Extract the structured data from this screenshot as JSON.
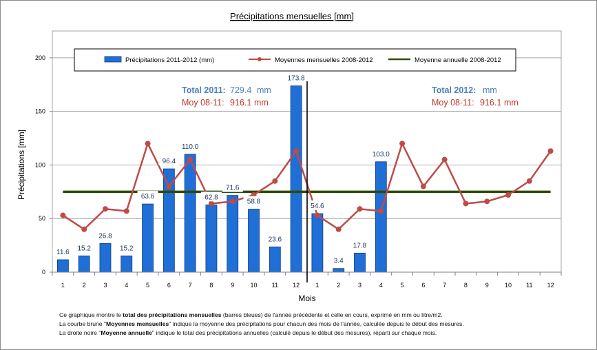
{
  "chart_data": {
    "type": "bar",
    "title": "Précipitations mensuelles [mm]",
    "xlabel": "Mois",
    "ylabel": "Précipitations [mm]",
    "ylim": [
      0,
      225
    ],
    "yticks": [
      0,
      50,
      100,
      150,
      200
    ],
    "grid": true,
    "legend_position": "top",
    "categories": [
      "1",
      "2",
      "3",
      "4",
      "5",
      "6",
      "7",
      "8",
      "9",
      "10",
      "11",
      "12",
      "1",
      "2",
      "3",
      "4",
      "5",
      "6",
      "7",
      "8",
      "9",
      "10",
      "11",
      "12"
    ],
    "series": [
      {
        "name": "Précipitations 2011-2012 (mm)",
        "type": "bar",
        "color": "#1f6fd6",
        "values": [
          11.6,
          15.2,
          26.8,
          15.2,
          63.6,
          96.4,
          110.0,
          62.8,
          71.6,
          58.8,
          23.6,
          173.8,
          54.6,
          3.4,
          17.8,
          103.0,
          null,
          null,
          null,
          null,
          null,
          null,
          null,
          null
        ],
        "labels": [
          "11.6",
          "15.2",
          "26.8",
          "15.2",
          "63.6",
          "96.4",
          "110.0",
          "62.8",
          "71.6",
          "58.8",
          "23.6",
          "173.8",
          "54.6",
          "3.4",
          "17.8",
          "103.0",
          "",
          "",
          "",
          "",
          "",
          "",
          "",
          ""
        ]
      },
      {
        "name": "Moyennes mensuelles 2008-2012",
        "type": "line",
        "color": "#be4b48",
        "values": [
          53,
          40,
          59,
          57,
          120,
          80,
          105,
          64,
          66,
          72,
          85,
          113,
          53,
          40,
          59,
          57,
          120,
          80,
          105,
          64,
          66,
          72,
          85,
          113
        ]
      },
      {
        "name": "Moyenne annuelle 2008-2012",
        "type": "line",
        "color": "#2d4a05",
        "values": [
          75,
          75,
          75,
          75,
          75,
          75,
          75,
          75,
          75,
          75,
          75,
          75,
          75,
          75,
          75,
          75,
          75,
          75,
          75,
          75,
          75,
          75,
          75,
          75
        ]
      }
    ],
    "year_separator_after_index": 11,
    "annotations": {
      "total_2011_label": "Total 2011:",
      "total_2011_value": "729.4",
      "total_2011_unit": "mm",
      "moy_2011_label": "Moy 08-11:",
      "moy_2011_value": "916.1",
      "moy_2011_unit": "mm",
      "total_2012_label": "Total 2012:",
      "total_2012_unit": "mm",
      "moy_2012_label": "Moy 08-11:",
      "moy_2012_value": "916.1",
      "moy_2012_unit": "mm"
    }
  },
  "footnotes": {
    "line1_pre": "Ce graphique montre le ",
    "line1_bold": "total des précipitations mensuelles",
    "line1_post": " (barres bleues) de l'année précédente et celle en cours, exprimé en mm ou litre/m2.",
    "line2_pre": "La courbe brune \"",
    "line2_bold": "Moyennes mensuelles",
    "line2_post": "\" indique la moyenne des précipitations pour chacun des mois de l'année, calculée depuis le début des mesures.",
    "line3_pre": "La droite noire \"",
    "line3_bold": "Moyenne annuelle",
    "line3_post": "\" indique le total des précipitations annuelles (calculé depuis le début des mesures), réparti sur chaque mois."
  },
  "colors": {
    "plot_background": "#ffffff",
    "grid": "#a6a6a6",
    "total_2011_blue": "#4f81bd",
    "moy_red": "#c0392b",
    "label_text": "#17365d"
  }
}
